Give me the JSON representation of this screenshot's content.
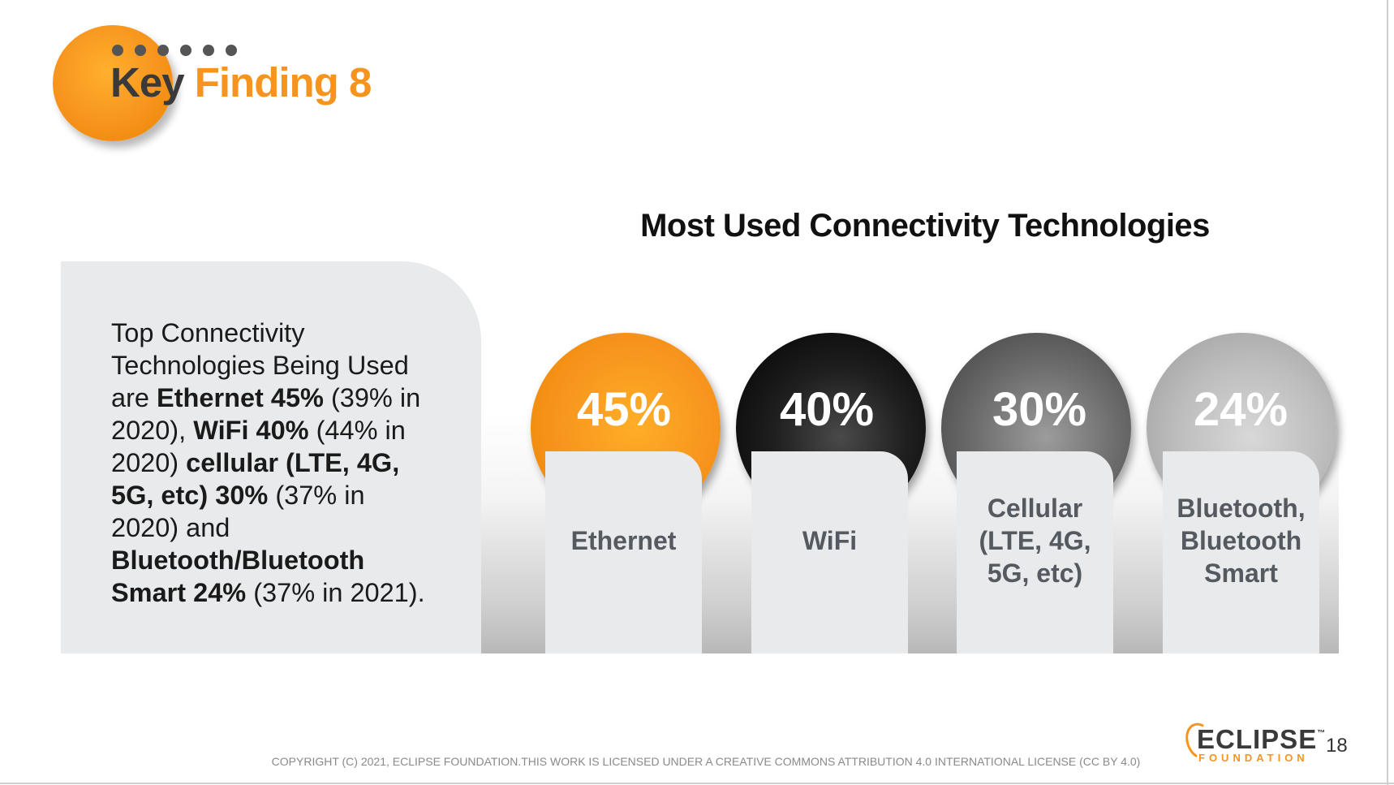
{
  "header": {
    "title_part1": "Key",
    "title_part2": "Finding 8"
  },
  "colors": {
    "accent": "#f7941d",
    "dark": "#1f1f1f",
    "panel": "#e8eaeb"
  },
  "summary": {
    "t1": "Top Connectivity Technologies Being Used are ",
    "b1": "Ethernet 45%",
    "t2": " (39% in 2020), ",
    "b2": "WiFi 40%",
    "t3": " (44% in 2020) ",
    "b3": "cellular (LTE, 4G, 5G, etc) 30%",
    "t4": " (37% in 2020) and ",
    "b4": "Bluetooth/Bluetooth Smart 24%",
    "t5": " (37% in 2021)."
  },
  "chart_title": "Most Used Connectivity Technologies",
  "technologies": [
    {
      "percent": "45%",
      "label": "Ethernet"
    },
    {
      "percent": "40%",
      "label": "WiFi"
    },
    {
      "percent": "30%",
      "label": "Cellular (LTE, 4G, 5G, etc)"
    },
    {
      "percent": "24%",
      "label": "Bluetooth, Bluetooth Smart"
    }
  ],
  "footer": {
    "copyright": "COPYRIGHT (C) 2021, ECLIPSE FOUNDATION.THIS WORK IS LICENSED UNDER A CREATIVE COMMONS ATTRIBUTION 4.0 INTERNATIONAL LICENSE (CC BY 4.0)",
    "logo_main": "ECLIPSE",
    "logo_tm": "™",
    "logo_sub": "FOUNDATION",
    "page_number": "18"
  }
}
